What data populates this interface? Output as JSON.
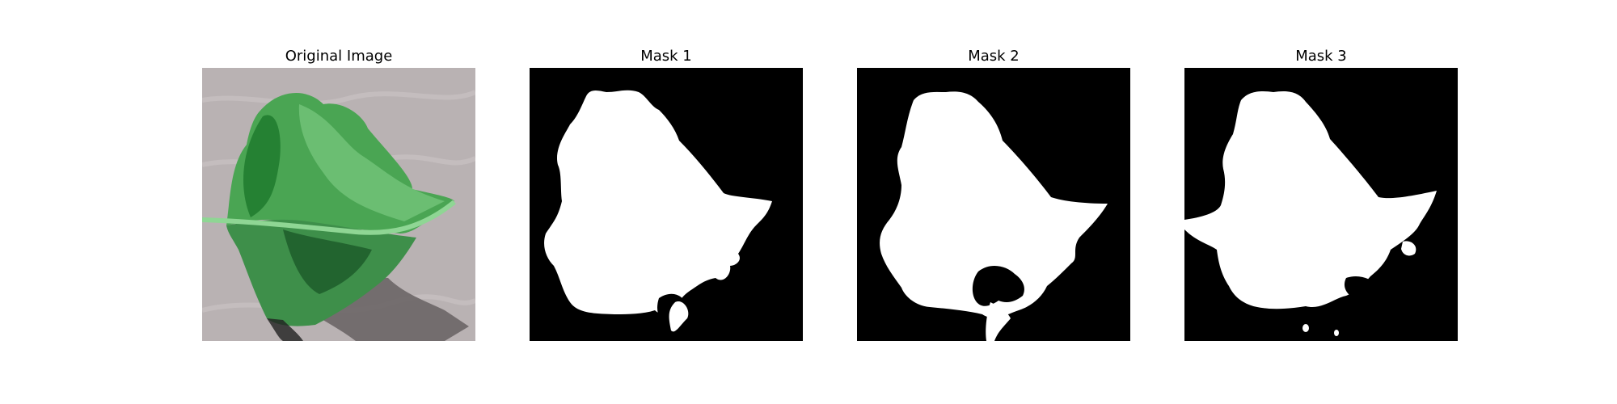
{
  "panels": [
    {
      "title": "Original Image",
      "kind": "photo",
      "content": "green leaf on gray textured background"
    },
    {
      "title": "Mask 1",
      "kind": "mask"
    },
    {
      "title": "Mask 2",
      "kind": "mask"
    },
    {
      "title": "Mask 3",
      "kind": "mask"
    }
  ],
  "colors": {
    "background": "#ffffff",
    "mask_background": "#000000",
    "mask_foreground": "#ffffff",
    "photo_background": "#b9b2b3",
    "leaf_light": "#5fbf5f",
    "leaf_mid": "#3e9e47",
    "leaf_dark": "#1f6b2b",
    "shadow": "#6b6566"
  }
}
